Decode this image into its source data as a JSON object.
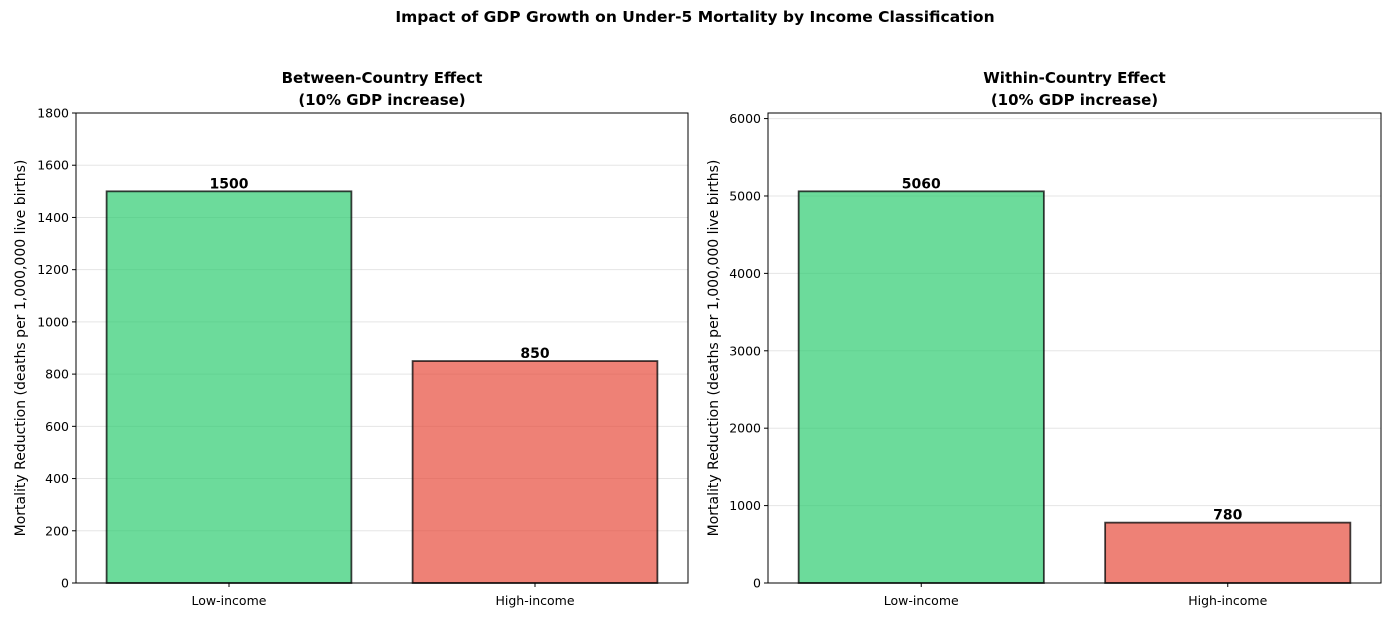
{
  "figure": {
    "suptitle": "Impact of GDP Growth on Under-5 Mortality by Income Classification"
  },
  "chart_data": [
    {
      "type": "bar",
      "title": "Between-Country Effect\n(10% GDP increase)",
      "title_lines": [
        "Between-Country Effect",
        "(10% GDP increase)"
      ],
      "xlabel": "",
      "ylabel": "Mortality Reduction (deaths per 1,000,000 live births)",
      "categories": [
        "Low-income",
        "High-income"
      ],
      "values": [
        1500,
        850
      ],
      "data_labels": [
        "1500",
        "850"
      ],
      "colors": [
        "#2ecc71",
        "#e74c3c"
      ],
      "ylim": [
        0,
        1800
      ],
      "yticks": [
        0,
        200,
        400,
        600,
        800,
        1000,
        1200,
        1400,
        1600,
        1800
      ],
      "grid": "y"
    },
    {
      "type": "bar",
      "title": "Within-Country Effect\n(10% GDP increase)",
      "title_lines": [
        "Within-Country Effect",
        "(10% GDP increase)"
      ],
      "xlabel": "",
      "ylabel": "Mortality Reduction (deaths per 1,000,000 live births)",
      "categories": [
        "Low-income",
        "High-income"
      ],
      "values": [
        5060,
        780
      ],
      "data_labels": [
        "5060",
        "780"
      ],
      "colors": [
        "#2ecc71",
        "#e74c3c"
      ],
      "ylim": [
        0,
        6072
      ],
      "yticks": [
        0,
        1000,
        2000,
        3000,
        4000,
        5000,
        6000
      ],
      "grid": "y"
    }
  ]
}
